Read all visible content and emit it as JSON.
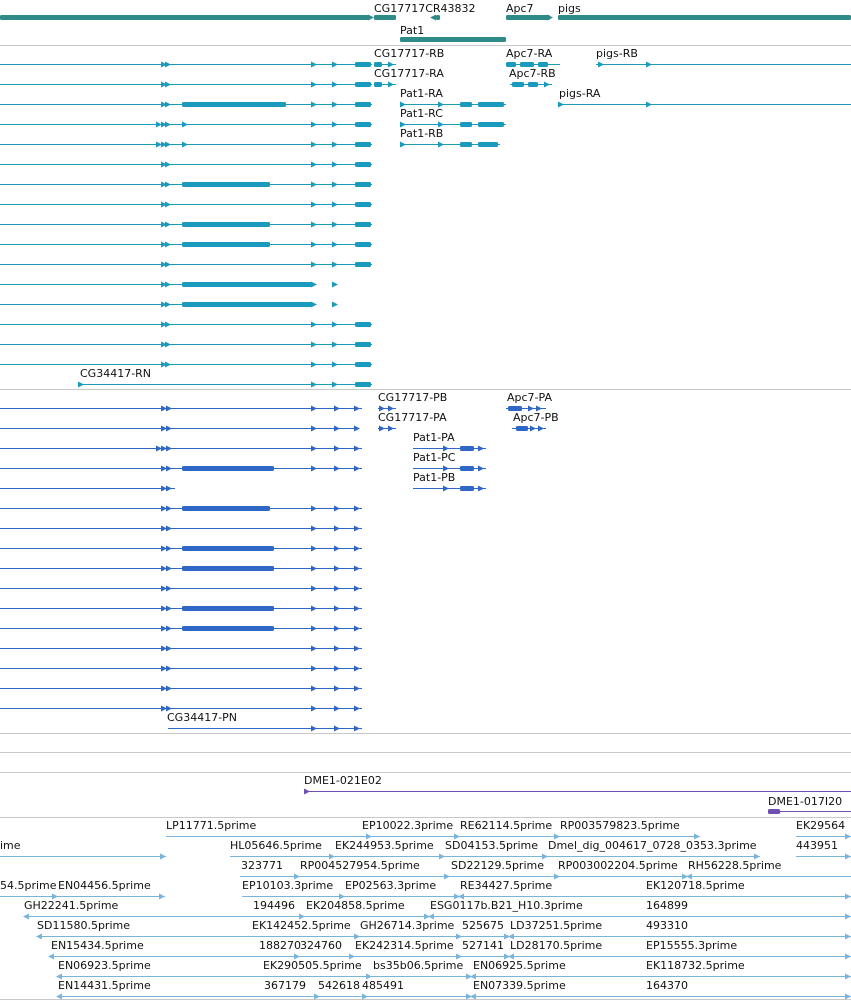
{
  "colors": {
    "gene": "#2e8b87",
    "transcript_a": "#1a9bbd",
    "transcript_b": "#2f67c6",
    "cdna": "#6f4fb0",
    "est": "#7ab3dc",
    "divider": "#c8c8c8"
  },
  "genes": [
    "CG17717",
    "CR43832",
    "Apc7",
    "pigs",
    "Pat1"
  ],
  "transcripts_a": [
    "CG17717-RB",
    "CG17717-RA",
    "Apc7-RA",
    "Apc7-RB",
    "pigs-RB",
    "pigs-RA",
    "Pat1-RA",
    "Pat1-RC",
    "Pat1-RB",
    "CG34417-RN"
  ],
  "proteins": [
    "CG17717-PB",
    "CG17717-PA",
    "Apc7-PA",
    "Apc7-PB",
    "Pat1-PA",
    "Pat1-PC",
    "Pat1-PB",
    "CG34417-PN"
  ],
  "cdna": [
    "DME1-021E02",
    "DME1-017I20"
  ],
  "ests": [
    "LP11771.5prime",
    "EP10022.3prime",
    "RE62114.5prime",
    "RP003579823.5prime",
    "EK29564",
    "ime",
    "HL05646.5prime",
    "EK244953.5prime",
    "SD04153.5prime",
    "Dmel_dig_004617_0728_0353.3prime",
    "443951",
    "323771",
    "RP004527954.5prime",
    "SD22129.5prime",
    "RP003002204.5prime",
    "RH56228.5prime",
    "54.5prime",
    "EN04456.5prime",
    "EP10103.3prime",
    "EP02563.3prime",
    "RE34427.5prime",
    "EK120718.5prime",
    "GH22241.5prime",
    "194496",
    "EK204858.5prime",
    "ESG0117b.B21_H10.3prime",
    "164899",
    "SD11580.5prime",
    "EK142452.5prime",
    "GH26714.3prime",
    "525675",
    "LD37251.5prime",
    "493310",
    "EN15434.5prime",
    "188270",
    "324760",
    "EK242314.5prime",
    "527141",
    "LD28170.5prime",
    "EP15555.3prime",
    "EN06923.5prime",
    "EK290505.5prime",
    "bs35b06.5prime",
    "EN06925.5prime",
    "EK118732.5prime",
    "EN14431.5prime",
    "367179",
    "542618",
    "485491",
    "EN07339.5prime",
    "164370"
  ]
}
